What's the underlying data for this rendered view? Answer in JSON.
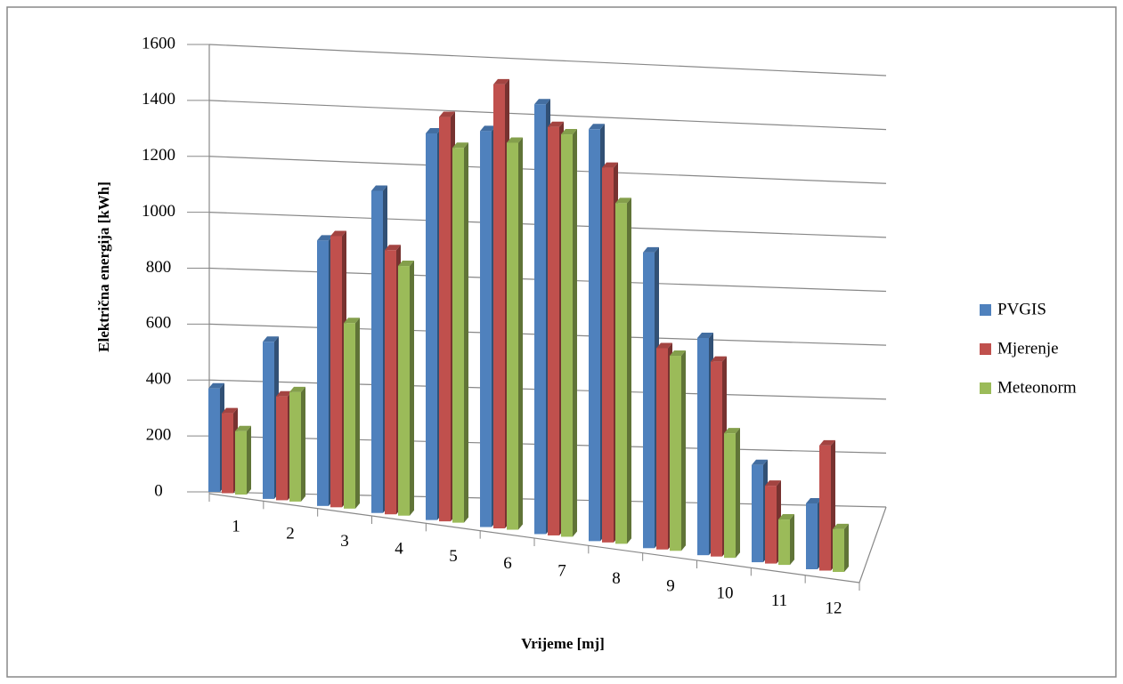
{
  "chart_data": {
    "type": "bar3d",
    "y_label": "Električna energija [kWh]",
    "x_label": "Vrijeme [mj]",
    "categories": [
      "1",
      "2",
      "3",
      "4",
      "5",
      "6",
      "7",
      "8",
      "9",
      "10",
      "11",
      "12"
    ],
    "series": [
      {
        "name": "PVGIS",
        "color": "#4f81bd",
        "values": [
          375,
          560,
          930,
          1110,
          1310,
          1320,
          1410,
          1330,
          940,
          680,
          300,
          200
        ]
      },
      {
        "name": "Mjerenje",
        "color": "#c0504d",
        "values": [
          290,
          370,
          950,
          910,
          1370,
          1480,
          1340,
          1210,
          640,
          610,
          240,
          380
        ]
      },
      {
        "name": "Meteonorm",
        "color": "#9bbb59",
        "values": [
          230,
          390,
          650,
          860,
          1270,
          1290,
          1320,
          1100,
          620,
          390,
          140,
          130
        ]
      }
    ],
    "ylim": [
      0,
      1600
    ],
    "yticks": [
      0,
      200,
      400,
      600,
      800,
      1000,
      1200,
      1400,
      1600
    ],
    "grid": true,
    "legend": "right"
  }
}
